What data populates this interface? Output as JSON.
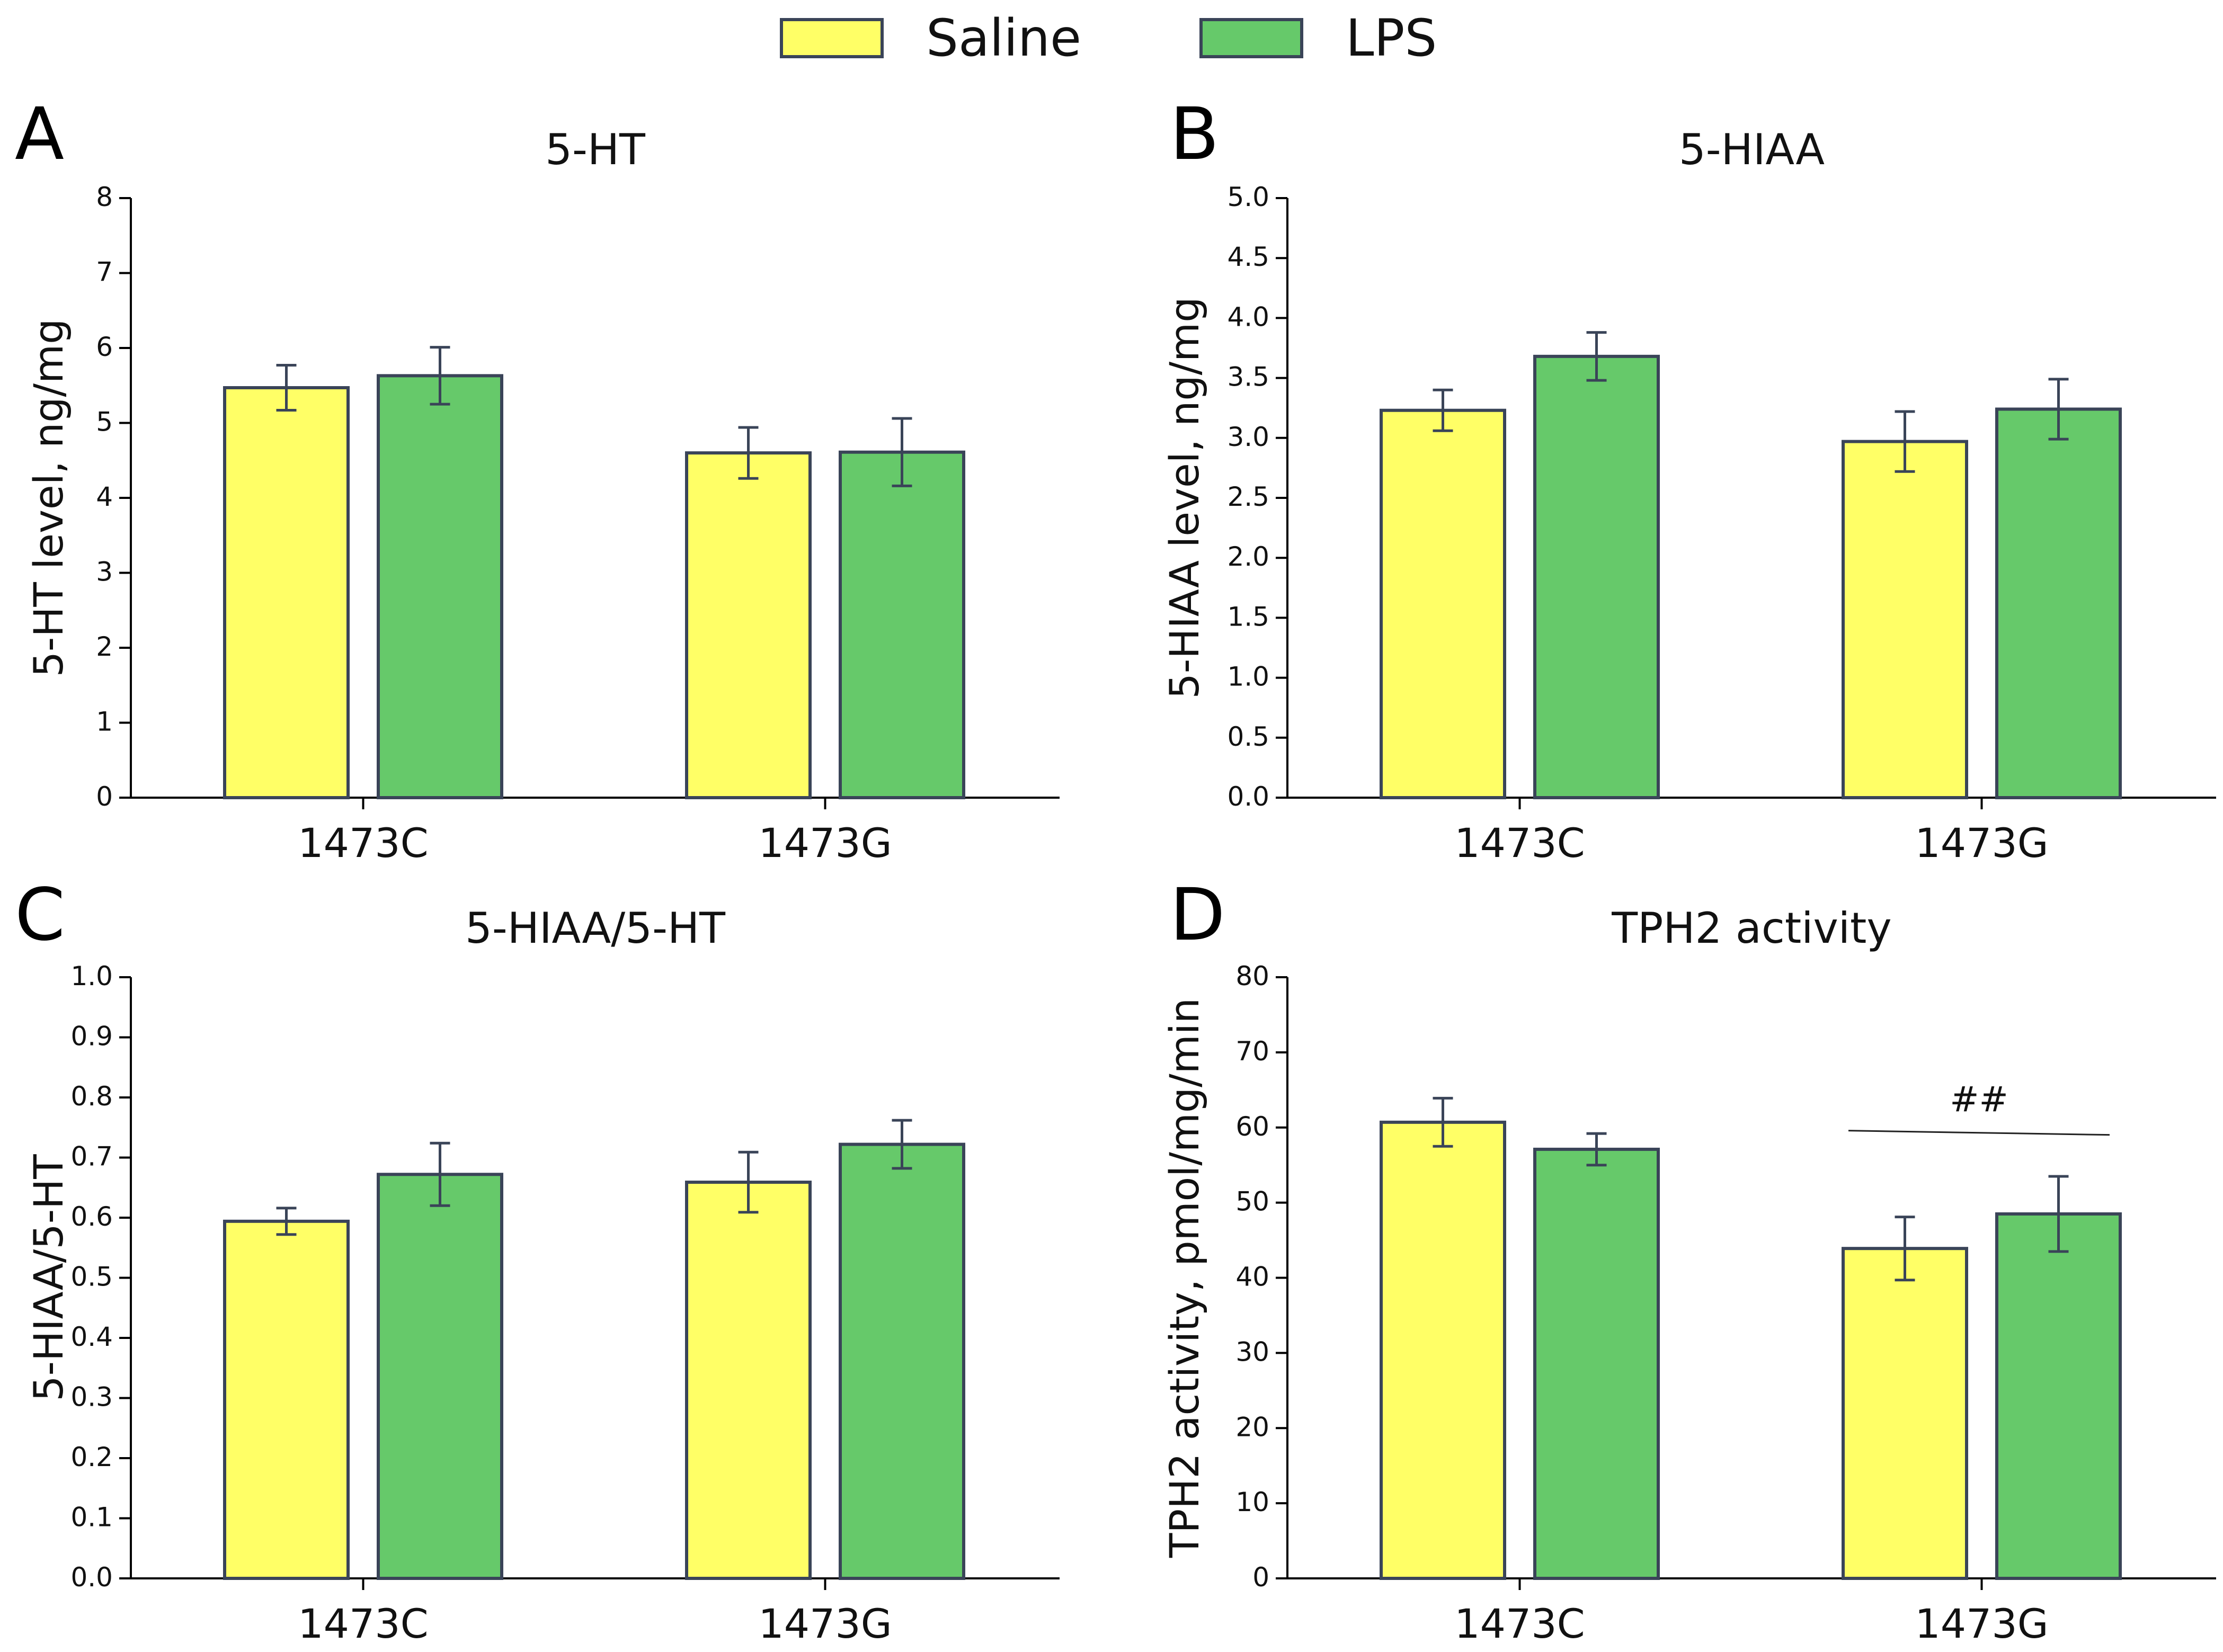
{
  "legend": {
    "items": [
      {
        "label": "Saline",
        "color": "#ffff66"
      },
      {
        "label": "LPS",
        "color": "#66c96a"
      }
    ]
  },
  "colors": {
    "saline": "#ffff66",
    "lps": "#66c96a",
    "edge": "#3a4458",
    "errorbar": "#3a4458"
  },
  "chart_data": [
    {
      "panel": "A",
      "type": "bar",
      "title": "5-HT",
      "ylabel": "5-HT level, ng/mg",
      "xlabel": "",
      "categories": [
        "1473C",
        "1473G"
      ],
      "ylim": [
        0,
        8
      ],
      "yticks": [
        "0",
        "1",
        "2",
        "3",
        "4",
        "5",
        "6",
        "7",
        "8"
      ],
      "series": [
        {
          "name": "Saline",
          "values": [
            5.47,
            4.6
          ],
          "errors": [
            0.3,
            0.34
          ]
        },
        {
          "name": "LPS",
          "values": [
            5.63,
            4.61
          ],
          "errors": [
            0.38,
            0.45
          ]
        }
      ],
      "annotations": []
    },
    {
      "panel": "B",
      "type": "bar",
      "title": "5-HIAA",
      "ylabel": "5-HIAA level, ng/mg",
      "xlabel": "",
      "categories": [
        "1473C",
        "1473G"
      ],
      "ylim": [
        0,
        5
      ],
      "yticks": [
        "0.0",
        "0.5",
        "1.0",
        "1.5",
        "2.0",
        "2.5",
        "3.0",
        "3.5",
        "4.0",
        "4.5",
        "5.0"
      ],
      "series": [
        {
          "name": "Saline",
          "values": [
            3.23,
            2.97
          ],
          "errors": [
            0.17,
            0.25
          ]
        },
        {
          "name": "LPS",
          "values": [
            3.68,
            3.24
          ],
          "errors": [
            0.2,
            0.25
          ]
        }
      ],
      "annotations": []
    },
    {
      "panel": "C",
      "type": "bar",
      "title": "5-HIAA/5-HT",
      "ylabel": "5-HIAA/5-HT",
      "xlabel": "",
      "categories": [
        "1473C",
        "1473G"
      ],
      "ylim": [
        0,
        1
      ],
      "yticks": [
        "0.0",
        "0.1",
        "0.2",
        "0.3",
        "0.4",
        "0.5",
        "0.6",
        "0.7",
        "0.8",
        "0.9",
        "1.0"
      ],
      "series": [
        {
          "name": "Saline",
          "values": [
            0.594,
            0.659
          ],
          "errors": [
            0.022,
            0.05
          ]
        },
        {
          "name": "LPS",
          "values": [
            0.672,
            0.722
          ],
          "errors": [
            0.052,
            0.04
          ]
        }
      ],
      "annotations": []
    },
    {
      "panel": "D",
      "type": "bar",
      "title": "TPH2 activity",
      "ylabel": "TPH2 activity, pmol/mg/min",
      "xlabel": "",
      "categories": [
        "1473C",
        "1473G"
      ],
      "ylim": [
        0,
        80
      ],
      "yticks": [
        "0",
        "10",
        "20",
        "30",
        "40",
        "50",
        "60",
        "70",
        "80"
      ],
      "series": [
        {
          "name": "Saline",
          "values": [
            60.7,
            43.9
          ],
          "errors": [
            3.2,
            4.2
          ]
        },
        {
          "name": "LPS",
          "values": [
            57.1,
            48.5
          ],
          "errors": [
            2.1,
            5.0
          ]
        }
      ],
      "annotations": [
        {
          "text": "##",
          "category": "1473G",
          "line_y": 59.3
        }
      ]
    }
  ]
}
